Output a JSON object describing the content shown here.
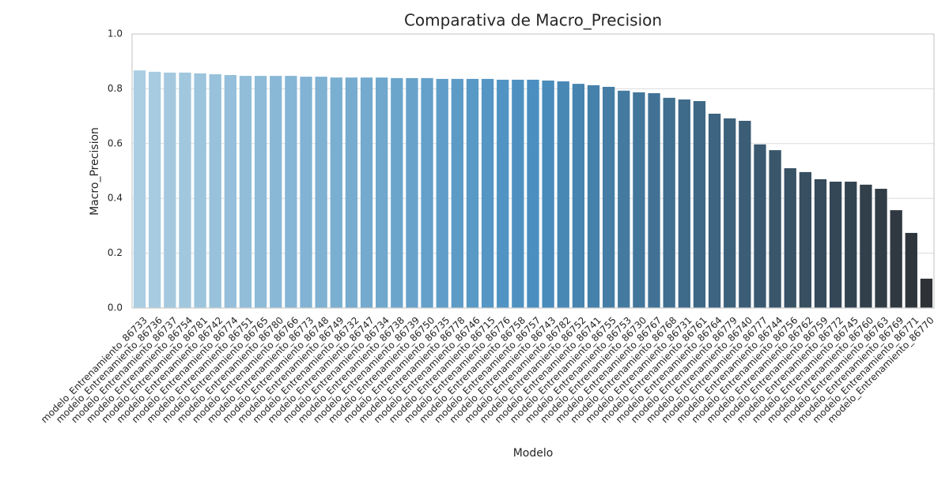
{
  "chart_data": {
    "type": "bar",
    "title": "Comparativa de Macro_Precision",
    "xlabel": "Modelo",
    "ylabel": "Macro_Precision",
    "categories": [
      "modelo_Entrenamiento_86733",
      "modelo_Entrenamiento_86736",
      "modelo_Entrenamiento_86737",
      "modelo_Entrenamiento_86754",
      "modelo_Entrenamiento_86781",
      "modelo_Entrenamiento_86742",
      "modelo_Entrenamiento_86774",
      "modelo_Entrenamiento_86751",
      "modelo_Entrenamiento_86765",
      "modelo_Entrenamiento_86780",
      "modelo_Entrenamiento_86766",
      "modelo_Entrenamiento_86773",
      "modelo_Entrenamiento_86748",
      "modelo_Entrenamiento_86749",
      "modelo_Entrenamiento_86732",
      "modelo_Entrenamiento_86747",
      "modelo_Entrenamiento_86734",
      "modelo_Entrenamiento_86738",
      "modelo_Entrenamiento_86739",
      "modelo_Entrenamiento_86750",
      "modelo_Entrenamiento_86735",
      "modelo_Entrenamiento_86778",
      "modelo_Entrenamiento_86746",
      "modelo_Entrenamiento_86715",
      "modelo_Entrenamiento_86776",
      "modelo_Entrenamiento_86758",
      "modelo_Entrenamiento_86757",
      "modelo_Entrenamiento_86743",
      "modelo_Entrenamiento_86782",
      "modelo_Entrenamiento_86752",
      "modelo_Entrenamiento_86741",
      "modelo_Entrenamiento_86755",
      "modelo_Entrenamiento_86753",
      "modelo_Entrenamiento_86730",
      "modelo_Entrenamiento_86767",
      "modelo_Entrenamiento_86768",
      "modelo_Entrenamiento_86731",
      "modelo_Entrenamiento_86761",
      "modelo_Entrenamiento_86764",
      "modelo_Entrenamiento_86779",
      "modelo_Entrenamiento_86740",
      "modelo_Entrenamiento_86777",
      "modelo_Entrenamiento_86744",
      "modelo_Entrenamiento_86756",
      "modelo_Entrenamiento_86762",
      "modelo_Entrenamiento_86759",
      "modelo_Entrenamiento_86772",
      "modelo_Entrenamiento_86745",
      "modelo_Entrenamiento_86760",
      "modelo_Entrenamiento_86763",
      "modelo_Entrenamiento_86769",
      "modelo_Entrenamiento_86771",
      "modelo_Entrenamiento_86770"
    ],
    "values": [
      0.867,
      0.862,
      0.859,
      0.859,
      0.856,
      0.853,
      0.85,
      0.847,
      0.847,
      0.847,
      0.847,
      0.844,
      0.844,
      0.841,
      0.841,
      0.841,
      0.841,
      0.839,
      0.839,
      0.839,
      0.836,
      0.836,
      0.836,
      0.836,
      0.833,
      0.833,
      0.833,
      0.83,
      0.827,
      0.818,
      0.813,
      0.807,
      0.793,
      0.787,
      0.784,
      0.767,
      0.761,
      0.755,
      0.709,
      0.692,
      0.683,
      0.597,
      0.576,
      0.51,
      0.496,
      0.47,
      0.461,
      0.461,
      0.45,
      0.435,
      0.357,
      0.274,
      0.107
    ],
    "palette": [
      "#abcee2",
      "#4a8fc0",
      "#2e3236"
    ],
    "ylim": [
      0,
      1
    ],
    "yticks": [
      {
        "value": 0,
        "label": "0.0"
      },
      0.2,
      0.4,
      0.6,
      0.8,
      {
        "value": 1,
        "label": "1.0"
      }
    ],
    "grid": true
  }
}
